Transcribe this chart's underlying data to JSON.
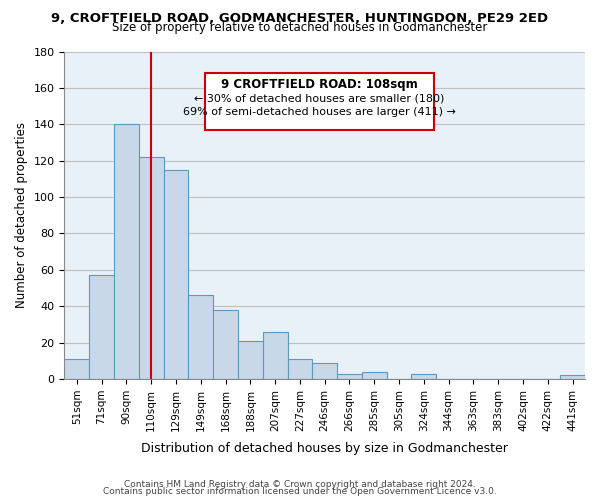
{
  "title": "9, CROFTFIELD ROAD, GODMANCHESTER, HUNTINGDON, PE29 2ED",
  "subtitle": "Size of property relative to detached houses in Godmanchester",
  "xlabel": "Distribution of detached houses by size in Godmanchester",
  "ylabel": "Number of detached properties",
  "bar_color": "#c8d8e8",
  "bar_edge_color": "#5a9abf",
  "categories": [
    "51sqm",
    "71sqm",
    "90sqm",
    "110sqm",
    "129sqm",
    "149sqm",
    "168sqm",
    "188sqm",
    "207sqm",
    "227sqm",
    "246sqm",
    "266sqm",
    "285sqm",
    "305sqm",
    "324sqm",
    "344sqm",
    "363sqm",
    "383sqm",
    "402sqm",
    "422sqm",
    "441sqm"
  ],
  "values": [
    11,
    57,
    140,
    122,
    115,
    46,
    38,
    21,
    26,
    11,
    9,
    3,
    4,
    0,
    3,
    0,
    0,
    0,
    0,
    0,
    2
  ],
  "vline_x": 3,
  "vline_color": "#cc0000",
  "ylim": [
    0,
    180
  ],
  "yticks": [
    0,
    20,
    40,
    60,
    80,
    100,
    120,
    140,
    160,
    180
  ],
  "annotation_title": "9 CROFTFIELD ROAD: 108sqm",
  "annotation_line1": "← 30% of detached houses are smaller (180)",
  "annotation_line2": "69% of semi-detached houses are larger (411) →",
  "annotation_box_color": "#ffffff",
  "annotation_box_edge": "#cc0000",
  "footer_line1": "Contains HM Land Registry data © Crown copyright and database right 2024.",
  "footer_line2": "Contains public sector information licensed under the Open Government Licence v3.0.",
  "background_color": "#ffffff",
  "axes_bg_color": "#e8f0f8",
  "grid_color": "#c0c0c0"
}
